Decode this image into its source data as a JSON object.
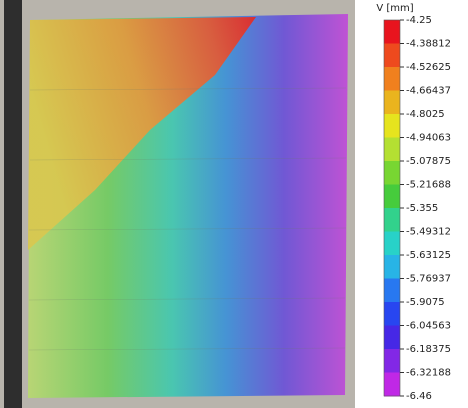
{
  "colorbar": {
    "title": "V [mm]",
    "ticks": [
      -4.25,
      -4.38812,
      -4.52625,
      -4.66437,
      -4.8025,
      -4.94063,
      -5.07875,
      -5.21688,
      -5.355,
      -5.49312,
      -5.63125,
      -5.76937,
      -5.9075,
      -6.04563,
      -6.18375,
      -6.32188,
      -6.46
    ],
    "colors": [
      "#e8141e",
      "#ee4a1e",
      "#f0801e",
      "#eab41e",
      "#e6e41e",
      "#b4e032",
      "#78d632",
      "#46cc3c",
      "#32d28c",
      "#28d2c8",
      "#28b4e6",
      "#2878f0",
      "#2846f0",
      "#4628e6",
      "#8228e6",
      "#c028e6"
    ]
  }
}
